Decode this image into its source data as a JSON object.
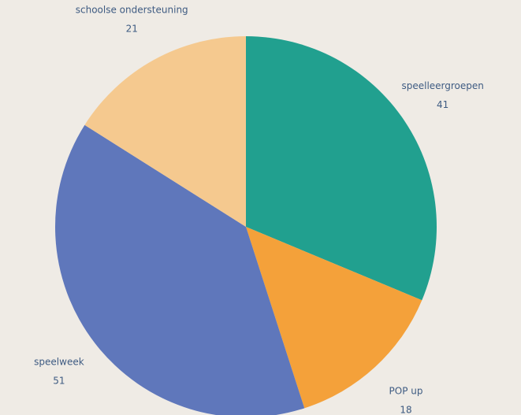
{
  "chart_data": {
    "type": "pie",
    "categories": [
      "speelleergroepen",
      "POP up",
      "speelweek",
      "schoolse ondersteuning"
    ],
    "values": [
      41,
      18,
      51,
      21
    ],
    "colors": [
      "#21a08f",
      "#f4a13a",
      "#5f77bb",
      "#f5c98f"
    ],
    "start_angle": 0,
    "direction": "clockwise"
  }
}
